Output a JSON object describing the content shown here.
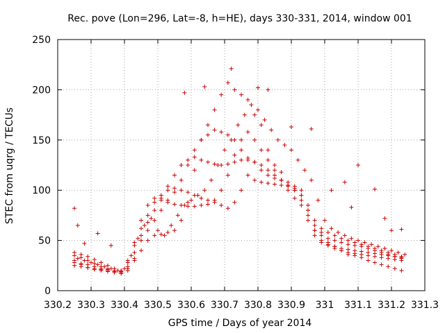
{
  "chart_data": {
    "type": "scatter",
    "title": "Rec. pove (Lon=296, Lat=-8, h=HE), days 330-331, 2014, window 001",
    "xlabel": "GPS time / Days of year 2014",
    "ylabel": "STEC from uqrg / TECUs",
    "xlim": [
      330.2,
      331.3
    ],
    "ylim": [
      0,
      250
    ],
    "xticks": [
      "330.2",
      "330.3",
      "330.4",
      "330.5",
      "330.6",
      "330.7",
      "330.8",
      "330.9",
      "331",
      "331.1",
      "331.2",
      "331.3"
    ],
    "yticks": [
      "0",
      "50",
      "100",
      "150",
      "200",
      "250"
    ],
    "grid": true,
    "marker": "plus",
    "color": "#cc0000",
    "series": [
      {
        "x": [
          330.25,
          330.27,
          330.29,
          330.31,
          330.33,
          330.35,
          330.37,
          330.39,
          330.41,
          330.43,
          330.45,
          330.47,
          330.49,
          330.51,
          330.53,
          330.55,
          330.57,
          330.59,
          330.61,
          330.63,
          330.65,
          330.67,
          330.69,
          330.71,
          330.73,
          330.75,
          330.77,
          330.79,
          330.81,
          330.83,
          330.85,
          330.87,
          330.89,
          330.91,
          330.93,
          330.95,
          330.97,
          330.99,
          331.01,
          331.03,
          331.05,
          331.07,
          331.09,
          331.11,
          331.13,
          331.15,
          331.17,
          331.19,
          331.21,
          331.23
        ],
        "y": [
          30,
          26,
          23,
          21,
          20,
          19,
          18,
          17,
          22,
          30,
          40,
          50,
          55,
          56,
          58,
          60,
          70,
          88,
          120,
          150,
          165,
          180,
          195,
          207,
          200,
          195,
          190,
          175,
          165,
          140,
          125,
          118,
          100,
          92,
          85,
          75,
          60,
          55,
          48,
          44,
          40,
          36,
          35,
          33,
          30,
          28,
          26,
          24,
          22,
          20
        ]
      },
      {
        "x": [
          330.25,
          330.27,
          330.29,
          330.31,
          330.33,
          330.35,
          330.37,
          330.39,
          330.41,
          330.43,
          330.45,
          330.47,
          330.49,
          330.51,
          330.53,
          330.55,
          330.57,
          330.59,
          330.61,
          330.63,
          330.65,
          330.67,
          330.69,
          330.71,
          330.73,
          330.75,
          330.77,
          330.79,
          330.81,
          330.83,
          330.85,
          330.87,
          330.89,
          330.91,
          330.93,
          330.95,
          330.97,
          330.99,
          331.01,
          331.03,
          331.05,
          331.07,
          331.09,
          331.11,
          331.13,
          331.15,
          331.17,
          331.19,
          331.21,
          331.23
        ],
        "y": [
          35,
          33,
          30,
          27,
          24,
          22,
          20,
          19,
          28,
          45,
          62,
          75,
          88,
          95,
          100,
          102,
          100,
          98,
          95,
          92,
          90,
          88,
          85,
          82,
          88,
          100,
          115,
          110,
          108,
          107,
          106,
          105,
          104,
          102,
          95,
          80,
          65,
          58,
          52,
          50,
          48,
          46,
          45,
          44,
          42,
          40,
          38,
          36,
          34,
          32
        ]
      },
      {
        "x": [
          330.25,
          330.27,
          330.29,
          330.31,
          330.33,
          330.35,
          330.37,
          330.39,
          330.41,
          330.43,
          330.45,
          330.47,
          330.49,
          330.51,
          330.53,
          330.55,
          330.57,
          330.59,
          330.61,
          330.63,
          330.65,
          330.67,
          330.69,
          330.71,
          330.73,
          330.75,
          330.77,
          330.79,
          330.81,
          330.83,
          330.85,
          330.87,
          330.89,
          330.91,
          330.93,
          330.95,
          330.97,
          330.99,
          331.01,
          331.03,
          331.05,
          331.07,
          331.09,
          331.11,
          331.13,
          331.15,
          331.17,
          331.19,
          331.21,
          331.23
        ],
        "y": [
          38,
          36,
          34,
          31,
          28,
          25,
          22,
          20,
          30,
          48,
          70,
          85,
          92,
          90,
          88,
          86,
          85,
          84,
          84,
          85,
          86,
          90,
          100,
          115,
          135,
          150,
          158,
          150,
          140,
          130,
          120,
          110,
          105,
          100,
          90,
          70,
          55,
          48,
          45,
          42,
          40,
          38,
          37,
          36,
          35,
          34,
          33,
          32,
          31,
          30
        ]
      },
      {
        "x": [
          330.25,
          330.27,
          330.29,
          330.31,
          330.33,
          330.35,
          330.37,
          330.39,
          330.41,
          330.43,
          330.45,
          330.47,
          330.49,
          330.51,
          330.53,
          330.55,
          330.57,
          330.59,
          330.61,
          330.63,
          330.65,
          330.67,
          330.69,
          330.71,
          330.73,
          330.75,
          330.77,
          330.79,
          330.81,
          330.83,
          330.85,
          330.87,
          330.89,
          330.91,
          330.93,
          330.95,
          330.97,
          330.99,
          331.01,
          331.03,
          331.05,
          331.07,
          331.09,
          331.11,
          331.13,
          331.15,
          331.17,
          331.19,
          331.21,
          331.23
        ],
        "y": [
          25,
          24,
          23,
          22,
          21,
          20,
          19,
          19,
          24,
          38,
          55,
          68,
          80,
          92,
          104,
          115,
          125,
          130,
          133,
          130,
          128,
          126,
          125,
          126,
          128,
          130,
          132,
          128,
          125,
          120,
          115,
          110,
          108,
          104,
          100,
          80,
          60,
          50,
          46,
          44,
          42,
          41,
          40,
          39,
          38,
          37,
          36,
          35,
          34,
          33
        ]
      },
      {
        "x": [
          330.25,
          330.27,
          330.29,
          330.31,
          330.33,
          330.35,
          330.37,
          330.39,
          330.41,
          330.43,
          330.45,
          330.47,
          330.49,
          330.51,
          330.53,
          330.55,
          330.57,
          330.59,
          330.61,
          330.63,
          330.65,
          330.67,
          330.69,
          330.71,
          330.73,
          330.75,
          330.77,
          330.79,
          330.81,
          330.83,
          330.85,
          330.87,
          330.89,
          330.91,
          330.93,
          330.95,
          330.97,
          330.99,
          331.01,
          331.03,
          331.05,
          331.07,
          331.09,
          331.11,
          331.13,
          331.15,
          331.17,
          331.19,
          331.21,
          331.23
        ],
        "y": [
          28,
          27,
          26,
          24,
          22,
          21,
          20,
          18,
          20,
          32,
          50,
          60,
          70,
          80,
          90,
          98,
          110,
          125,
          140,
          150,
          155,
          160,
          158,
          155,
          150,
          140,
          130,
          128,
          120,
          115,
          112,
          110,
          105,
          100,
          95,
          85,
          70,
          62,
          58,
          55,
          52,
          50,
          48,
          46,
          44,
          42,
          40,
          38,
          36,
          34
        ]
      },
      {
        "x": [
          330.26,
          330.28,
          330.3,
          330.32,
          330.34,
          330.36,
          330.38,
          330.4,
          330.42,
          330.44,
          330.46,
          330.48,
          330.5,
          330.52,
          330.54,
          330.56,
          330.58,
          330.6,
          330.62,
          330.64,
          330.66,
          330.68,
          330.7,
          330.72,
          330.74,
          330.76,
          330.78,
          330.8,
          330.82,
          330.84,
          330.86,
          330.88,
          330.9,
          330.92,
          330.94,
          330.96,
          330.98,
          331,
          331.02,
          331.04,
          331.06,
          331.08,
          331.1,
          331.12,
          331.14,
          331.16,
          331.18,
          331.2,
          331.22,
          331.24
        ],
        "y": [
          32,
          30,
          28,
          26,
          24,
          22,
          20,
          22,
          35,
          52,
          65,
          72,
          60,
          55,
          65,
          75,
          85,
          90,
          95,
          100,
          110,
          125,
          140,
          150,
          165,
          175,
          185,
          180,
          170,
          160,
          150,
          145,
          140,
          130,
          120,
          110,
          90,
          70,
          62,
          58,
          55,
          52,
          50,
          48,
          46,
          44,
          42,
          40,
          38,
          36
        ]
      }
    ],
    "outliers": {
      "x": [
        330.25,
        330.26,
        330.28,
        330.32,
        330.36,
        330.58,
        330.64,
        330.72,
        330.8,
        330.83,
        330.9,
        330.96,
        331.02,
        331.06,
        331.08,
        331.1,
        331.15,
        331.18,
        331.2,
        331.23
      ],
      "y": [
        82,
        65,
        47,
        57,
        45,
        197,
        203,
        221,
        202,
        200,
        163,
        161,
        100,
        108,
        83,
        125,
        101,
        72,
        60,
        61
      ]
    }
  }
}
